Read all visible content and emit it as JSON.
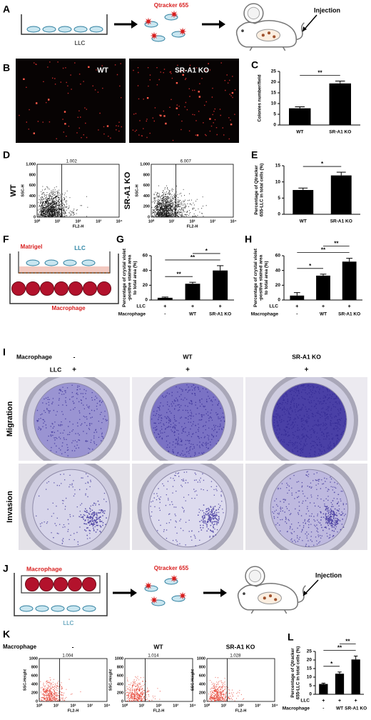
{
  "panel_a": {
    "letter": "A",
    "plate_label": "LLC",
    "dye": "Qtracker 655",
    "injection": "Injection"
  },
  "panel_b": {
    "letter": "B",
    "images": [
      "WT",
      "SR-A1 KO"
    ]
  },
  "panel_d": {
    "letter": "D",
    "plots": [
      {
        "label": "WT",
        "gate": "1.002"
      },
      {
        "label": "SR-A1 KO",
        "gate": "6.007"
      }
    ],
    "ylabel": "SSC-H",
    "xlabel": "FL2-H",
    "yticks": [
      "0",
      "200",
      "400",
      "600",
      "800",
      "1,000"
    ],
    "xticks": [
      "10⁰",
      "10¹",
      "10²",
      "10³",
      "10⁴"
    ]
  },
  "panel_f": {
    "letter": "F",
    "matrigel": "Matrigel",
    "llc": "LLC",
    "macrophage": "Macrophage"
  },
  "panel_i": {
    "letter": "I",
    "column_header": "Macrophage",
    "columns": [
      "-",
      "WT",
      "SR-A1 KO"
    ],
    "row_header": "LLC",
    "llc": [
      "+",
      "+",
      "+"
    ],
    "rows": [
      "Migration",
      "Invasion"
    ]
  },
  "panel_j": {
    "letter": "J",
    "macrophage": "Macrophage",
    "dye": "Qtracker 655",
    "llc": "LLC",
    "injection": "Injection"
  },
  "panel_k": {
    "letter": "K",
    "group_label": "Macrophage",
    "plots": [
      {
        "label": "-",
        "gate": "1.004"
      },
      {
        "label": "WT",
        "gate": "1.014"
      },
      {
        "label": "SR-A1 KO",
        "gate": "1.028"
      }
    ],
    "ylabel": "SSC-Height",
    "xlabel": "FL2-H",
    "yticks": [
      "0",
      "200",
      "400",
      "600",
      "800",
      "1000"
    ],
    "xticks": [
      "10⁰",
      "10¹",
      "10²",
      "10³",
      "10⁴"
    ]
  },
  "chart_data": [
    {
      "type": "bar",
      "panel": "C",
      "ylabel": [
        "Colonies number/field"
      ],
      "categories": [
        "WT",
        "SR-A1 KO"
      ],
      "values": [
        7.8,
        19.4
      ],
      "errors": [
        0.7,
        1.1
      ],
      "ylim": [
        0,
        25
      ],
      "yticks": [
        0,
        5,
        10,
        15,
        20,
        25
      ],
      "color": "#000000",
      "significance": [
        {
          "between": [
            0,
            1
          ],
          "label": "**"
        }
      ]
    },
    {
      "type": "bar",
      "panel": "E",
      "ylabel": [
        "Percentage of Qtracker",
        "655-LLC in total cells (%)"
      ],
      "categories": [
        "WT",
        "SR-A1 KO"
      ],
      "values": [
        7.5,
        12
      ],
      "errors": [
        0.6,
        1
      ],
      "ylim": [
        0,
        15
      ],
      "yticks": [
        0,
        5,
        10,
        15
      ],
      "color": "#000000",
      "significance": [
        {
          "between": [
            0,
            1
          ],
          "label": "*"
        }
      ]
    },
    {
      "type": "bar",
      "panel": "G",
      "ylabel": [
        "Percentage of crystal violet",
        "-positive stained area",
        "to total area (%)"
      ],
      "category_label": "Macrophage",
      "categories": [
        "-",
        "WT",
        "SR-A1 KO"
      ],
      "condition": {
        "label": "LLC",
        "values": [
          "+",
          "+",
          "+"
        ]
      },
      "values": [
        3,
        22,
        40
      ],
      "errors": [
        1,
        2,
        6.5
      ],
      "ylim": [
        0,
        60
      ],
      "yticks": [
        0,
        20,
        40,
        60
      ],
      "color": "#000000",
      "significance": [
        {
          "between": [
            0,
            1
          ],
          "label": "**"
        },
        {
          "between": [
            0,
            2
          ],
          "label": "**"
        },
        {
          "between": [
            1,
            2
          ],
          "label": "*"
        }
      ]
    },
    {
      "type": "bar",
      "panel": "H",
      "ylabel": [
        "Percentage of crystal violet",
        "-positive stained area",
        "to total area (%)"
      ],
      "category_label": "Macrophage",
      "categories": [
        "-",
        "WT",
        "SR-A1 KO"
      ],
      "condition": {
        "label": "LLC",
        "values": [
          "+",
          "+",
          "+"
        ]
      },
      "values": [
        6,
        33,
        52
      ],
      "errors": [
        4,
        2,
        4.5
      ],
      "ylim": [
        0,
        60
      ],
      "yticks": [
        0,
        20,
        40,
        60
      ],
      "color": "#000000",
      "significance": [
        {
          "between": [
            0,
            1
          ],
          "label": "*"
        },
        {
          "between": [
            0,
            2
          ],
          "label": "**"
        },
        {
          "between": [
            1,
            2
          ],
          "label": "**"
        }
      ]
    },
    {
      "type": "bar",
      "panel": "L",
      "ylabel": [
        "Percentage of Qtracker",
        "655-LLC in total cells (%)"
      ],
      "category_label": "Macrophage",
      "categories": [
        "-",
        "WT",
        "SR-A1 KO"
      ],
      "condition": {
        "label": "LLC",
        "values": [
          "+",
          "+",
          "+"
        ]
      },
      "values": [
        6,
        12,
        20.3
      ],
      "errors": [
        0.5,
        1,
        2
      ],
      "ylim": [
        0,
        25
      ],
      "yticks": [
        0,
        5,
        10,
        15,
        20,
        25
      ],
      "color": "#000000",
      "significance": [
        {
          "between": [
            0,
            1
          ],
          "label": "*"
        },
        {
          "between": [
            0,
            2
          ],
          "label": "**"
        },
        {
          "between": [
            1,
            2
          ],
          "label": "**"
        }
      ]
    }
  ]
}
